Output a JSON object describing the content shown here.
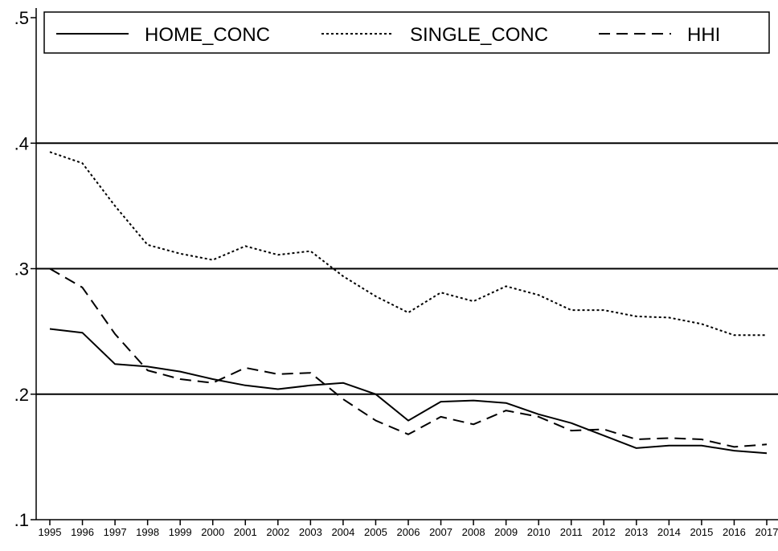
{
  "chart_data": {
    "type": "line",
    "title": "",
    "xlabel": "",
    "ylabel": "",
    "x": [
      "1995",
      "1996",
      "1997",
      "1998",
      "1999",
      "2000",
      "2001",
      "2002",
      "2003",
      "2004",
      "2005",
      "2006",
      "2007",
      "2008",
      "2009",
      "2010",
      "2011",
      "2012",
      "2013",
      "2014",
      "2015",
      "2016",
      "2017"
    ],
    "ylim": [
      0.1,
      0.5
    ],
    "yticks": [
      {
        "value": 0.1,
        "label": ".1"
      },
      {
        "value": 0.2,
        "label": ".2"
      },
      {
        "value": 0.3,
        "label": ".3"
      },
      {
        "value": 0.4,
        "label": ".4"
      },
      {
        "value": 0.5,
        "label": ".5"
      }
    ],
    "grid": "horizontal",
    "legend_position": "top",
    "series": [
      {
        "name": "HOME_CONC",
        "style": "solid",
        "color": "#000000",
        "values": [
          0.252,
          0.249,
          0.224,
          0.222,
          0.218,
          0.212,
          0.207,
          0.204,
          0.207,
          0.209,
          0.2,
          0.179,
          0.194,
          0.195,
          0.193,
          0.184,
          0.177,
          0.167,
          0.157,
          0.159,
          0.159,
          0.155,
          0.153
        ]
      },
      {
        "name": "SINGLE_CONC",
        "style": "dotted",
        "color": "#000000",
        "values": [
          0.393,
          0.384,
          0.35,
          0.319,
          0.312,
          0.307,
          0.318,
          0.311,
          0.314,
          0.294,
          0.278,
          0.265,
          0.281,
          0.274,
          0.286,
          0.279,
          0.267,
          0.267,
          0.262,
          0.261,
          0.256,
          0.247,
          0.247
        ]
      },
      {
        "name": "HHI",
        "style": "dashed",
        "color": "#000000",
        "values": [
          0.3,
          0.285,
          0.248,
          0.219,
          0.212,
          0.209,
          0.221,
          0.216,
          0.217,
          0.196,
          0.179,
          0.168,
          0.182,
          0.176,
          0.187,
          0.182,
          0.171,
          0.172,
          0.164,
          0.165,
          0.164,
          0.158,
          0.16
        ]
      }
    ]
  }
}
